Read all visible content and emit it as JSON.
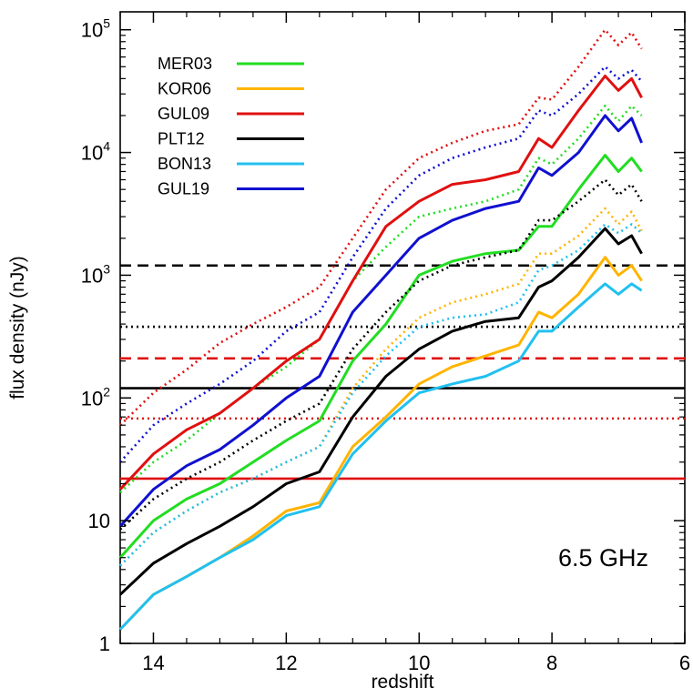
{
  "chart_data": {
    "type": "line",
    "xlabel": "redshift",
    "ylabel": "flux density (nJy)",
    "annotation": "6.5 GHz",
    "xlim": [
      14.5,
      6
    ],
    "ylim": [
      1,
      140000
    ],
    "yscale": "log",
    "x_ticks": [
      14,
      12,
      10,
      8,
      6
    ],
    "x_tick_labels": [
      "14",
      "12",
      "10",
      "8",
      "6"
    ],
    "y_ticks": [
      1,
      10,
      100,
      1000,
      10000,
      100000
    ],
    "legend_placement": "top-left",
    "colors": {
      "MER03": "#22dd22",
      "KOR06": "#ffb400",
      "GUL09": "#e01010",
      "PLT12": "#000000",
      "BON13": "#22c0f0",
      "GUL19": "#1010d0"
    },
    "x": [
      14.5,
      14.0,
      13.5,
      13.0,
      12.5,
      12.0,
      11.5,
      11.0,
      10.5,
      10.0,
      9.5,
      9.0,
      8.5,
      8.2,
      8.0,
      7.6,
      7.2,
      7.0,
      6.8,
      6.65
    ],
    "series": [
      {
        "name": "MER03",
        "style": "solid",
        "values": [
          5,
          10,
          15,
          20,
          30,
          45,
          65,
          200,
          400,
          1000,
          1300,
          1500,
          1600,
          2500,
          2500,
          5000,
          9500,
          7000,
          9000,
          7000
        ]
      },
      {
        "name": "MER03",
        "style": "dotted",
        "legend": false,
        "values": [
          17,
          30,
          45,
          75,
          120,
          180,
          300,
          900,
          1700,
          3000,
          3500,
          4000,
          5000,
          9000,
          8000,
          13000,
          24000,
          18000,
          24000,
          20000
        ]
      },
      {
        "name": "KOR06",
        "style": "solid",
        "values": [
          1.3,
          2.5,
          3.5,
          5,
          7.5,
          12,
          14,
          40,
          70,
          130,
          180,
          220,
          270,
          500,
          450,
          700,
          1400,
          1000,
          1200,
          900
        ]
      },
      {
        "name": "KOR06",
        "style": "dotted",
        "legend": false,
        "values": [
          4.3,
          8,
          12,
          17,
          22,
          30,
          40,
          120,
          250,
          450,
          600,
          700,
          850,
          1500,
          1500,
          2100,
          3500,
          2600,
          3300,
          2300
        ]
      },
      {
        "name": "GUL09",
        "style": "solid",
        "values": [
          18,
          35,
          55,
          75,
          120,
          200,
          300,
          900,
          2500,
          4000,
          5500,
          6000,
          7000,
          13000,
          11000,
          22000,
          42000,
          32000,
          40000,
          28000
        ]
      },
      {
        "name": "GUL09",
        "style": "dotted",
        "legend": false,
        "values": [
          60,
          110,
          170,
          280,
          400,
          550,
          800,
          2000,
          5000,
          9000,
          12000,
          15000,
          17000,
          28000,
          27000,
          50000,
          100000,
          75000,
          95000,
          70000
        ]
      },
      {
        "name": "PLT12",
        "style": "solid",
        "values": [
          2.5,
          4.5,
          6.5,
          9,
          13,
          20,
          25,
          70,
          150,
          250,
          350,
          420,
          450,
          800,
          900,
          1400,
          2400,
          1800,
          2100,
          1500
        ]
      },
      {
        "name": "PLT12",
        "style": "dotted",
        "legend": false,
        "values": [
          8.5,
          15,
          22,
          30,
          45,
          65,
          90,
          250,
          500,
          900,
          1200,
          1400,
          1600,
          2800,
          2800,
          4000,
          6000,
          4500,
          5500,
          4000
        ]
      },
      {
        "name": "BON13",
        "style": "solid",
        "values": [
          1.3,
          2.5,
          3.5,
          5,
          7,
          11,
          13,
          35,
          65,
          110,
          130,
          150,
          200,
          350,
          350,
          550,
          850,
          700,
          850,
          750
        ]
      },
      {
        "name": "BON13",
        "style": "dotted",
        "legend": false,
        "values": [
          4.3,
          8,
          12,
          17,
          22,
          30,
          40,
          110,
          220,
          380,
          450,
          480,
          600,
          1100,
          1200,
          1600,
          2600,
          2200,
          2600,
          2200
        ]
      },
      {
        "name": "GUL19",
        "style": "solid",
        "values": [
          9,
          18,
          28,
          38,
          60,
          100,
          150,
          500,
          1000,
          2000,
          2800,
          3500,
          4000,
          7500,
          6500,
          10000,
          20000,
          15000,
          19000,
          12000
        ]
      },
      {
        "name": "GUL19",
        "style": "dotted",
        "legend": false,
        "values": [
          30,
          60,
          90,
          130,
          200,
          350,
          500,
          1400,
          3500,
          6500,
          9000,
          11000,
          13000,
          22000,
          20000,
          30000,
          50000,
          40000,
          47000,
          38000
        ]
      }
    ],
    "reference_lines": [
      {
        "y": 1200,
        "color": "#000000",
        "style": "dashed"
      },
      {
        "y": 380,
        "color": "#000000",
        "style": "dotted"
      },
      {
        "y": 210,
        "color": "#e01010",
        "style": "dashed"
      },
      {
        "y": 120,
        "color": "#000000",
        "style": "solid"
      },
      {
        "y": 68,
        "color": "#e01010",
        "style": "dotted"
      },
      {
        "y": 22,
        "color": "#e01010",
        "style": "solid"
      }
    ]
  }
}
